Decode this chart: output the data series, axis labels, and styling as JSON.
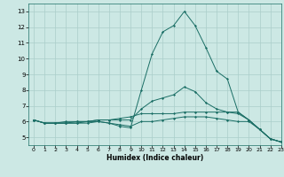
{
  "xlabel": "Humidex (Indice chaleur)",
  "xlim": [
    -0.5,
    23
  ],
  "ylim": [
    4.5,
    13.5
  ],
  "yticks": [
    5,
    6,
    7,
    8,
    9,
    10,
    11,
    12,
    13
  ],
  "xticks": [
    0,
    1,
    2,
    3,
    4,
    5,
    6,
    7,
    8,
    9,
    10,
    11,
    12,
    13,
    14,
    15,
    16,
    17,
    18,
    19,
    20,
    21,
    22,
    23
  ],
  "background_color": "#cce8e4",
  "grid_color": "#aaceca",
  "line_color": "#1a6e65",
  "lines": [
    {
      "x": [
        0,
        1,
        2,
        3,
        4,
        5,
        6,
        7,
        8,
        9,
        10,
        11,
        12,
        13,
        14,
        15,
        16,
        17,
        18,
        19,
        20,
        21,
        22,
        23
      ],
      "y": [
        6.1,
        5.9,
        5.9,
        5.9,
        5.9,
        6.0,
        6.0,
        5.9,
        5.7,
        5.6,
        8.0,
        10.3,
        11.7,
        12.1,
        13.0,
        12.1,
        10.7,
        9.2,
        8.7,
        6.6,
        6.1,
        5.5,
        4.9,
        4.7
      ]
    },
    {
      "x": [
        0,
        1,
        2,
        3,
        4,
        5,
        6,
        7,
        8,
        9,
        10,
        11,
        12,
        13,
        14,
        15,
        16,
        17,
        18,
        19,
        20,
        21,
        22,
        23
      ],
      "y": [
        6.1,
        5.9,
        5.9,
        6.0,
        6.0,
        6.0,
        6.1,
        6.1,
        6.2,
        6.3,
        6.5,
        6.5,
        6.5,
        6.5,
        6.6,
        6.6,
        6.6,
        6.6,
        6.6,
        6.6,
        6.1,
        5.5,
        4.9,
        4.7
      ]
    },
    {
      "x": [
        0,
        1,
        2,
        3,
        4,
        5,
        6,
        7,
        8,
        9,
        10,
        11,
        12,
        13,
        14,
        15,
        16,
        17,
        18,
        19,
        20,
        21,
        22,
        23
      ],
      "y": [
        6.1,
        5.9,
        5.9,
        5.9,
        5.9,
        5.9,
        6.0,
        5.9,
        5.8,
        5.7,
        6.0,
        6.0,
        6.1,
        6.2,
        6.3,
        6.3,
        6.3,
        6.2,
        6.1,
        6.0,
        6.0,
        5.5,
        4.9,
        4.7
      ]
    },
    {
      "x": [
        0,
        1,
        2,
        3,
        4,
        5,
        6,
        7,
        8,
        9,
        10,
        11,
        12,
        13,
        14,
        15,
        16,
        17,
        18,
        19,
        20,
        21,
        22,
        23
      ],
      "y": [
        6.1,
        5.9,
        5.9,
        5.9,
        6.0,
        6.0,
        6.1,
        6.1,
        6.1,
        6.1,
        6.8,
        7.3,
        7.5,
        7.7,
        8.2,
        7.9,
        7.2,
        6.8,
        6.6,
        6.5,
        6.1,
        5.5,
        4.9,
        4.7
      ]
    }
  ]
}
